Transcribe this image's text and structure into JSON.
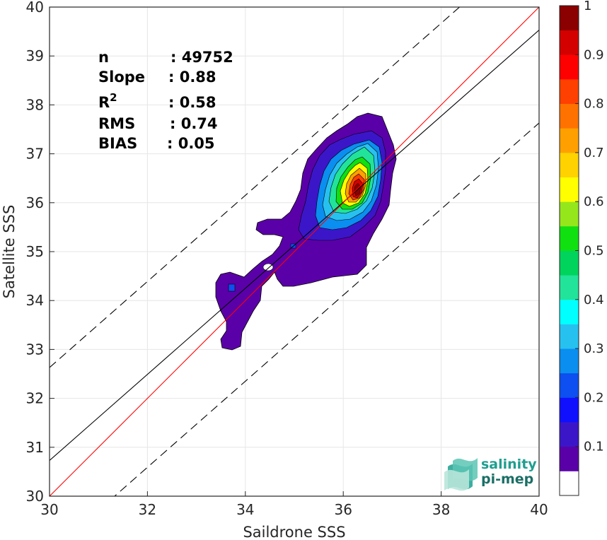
{
  "chart_data": {
    "type": "heatmap",
    "title": "",
    "xlabel": "Saildrone SSS",
    "ylabel": "Satellite SSS",
    "xlim": [
      30,
      40
    ],
    "ylim": [
      30,
      40
    ],
    "xticks": [
      "30",
      "32",
      "34",
      "36",
      "38",
      "40"
    ],
    "yticks": [
      "30",
      "31",
      "32",
      "33",
      "34",
      "35",
      "36",
      "37",
      "38",
      "39",
      "40"
    ],
    "grid": true,
    "stats": [
      {
        "label": "n",
        "value": ": 49752"
      },
      {
        "label": "Slope",
        "value": ": 0.88"
      },
      {
        "label": "R",
        "sup": "2",
        "value": ": 0.58"
      },
      {
        "label": "RMS",
        "value": ": 0.74"
      },
      {
        "label": "BIAS",
        "value": ": 0.05"
      }
    ],
    "lines": {
      "identity": {
        "slope": 1,
        "intercept": 0,
        "color": "#ff0000"
      },
      "regression": {
        "slope": 0.88,
        "intercept": 4.33,
        "color": "#000000"
      },
      "bounds": [
        {
          "slope": 0.88,
          "intercept": 6.23,
          "dash": true
        },
        {
          "slope": 0.88,
          "intercept": 2.43,
          "dash": true
        }
      ]
    },
    "density_peak": {
      "x": 36.3,
      "y": 36.2
    },
    "colorbar": {
      "min": 0,
      "max": 1,
      "ticks": [
        "0.1",
        "0.2",
        "0.3",
        "0.4",
        "0.5",
        "0.6",
        "0.7",
        "0.8",
        "0.9",
        "1"
      ],
      "colors": [
        "#ffffff",
        "#5a00a8",
        "#3b16c8",
        "#1010ff",
        "#0d4ff0",
        "#0a8ef0",
        "#27c1f0",
        "#00ffff",
        "#22e39a",
        "#00d45c",
        "#10e010",
        "#96e61c",
        "#ffff00",
        "#ffd200",
        "#ffa000",
        "#ff7200",
        "#ff4000",
        "#ff0000",
        "#d40000",
        "#8b0000"
      ]
    }
  },
  "logo": {
    "line1": "salinity",
    "line2": "pi-mep"
  }
}
